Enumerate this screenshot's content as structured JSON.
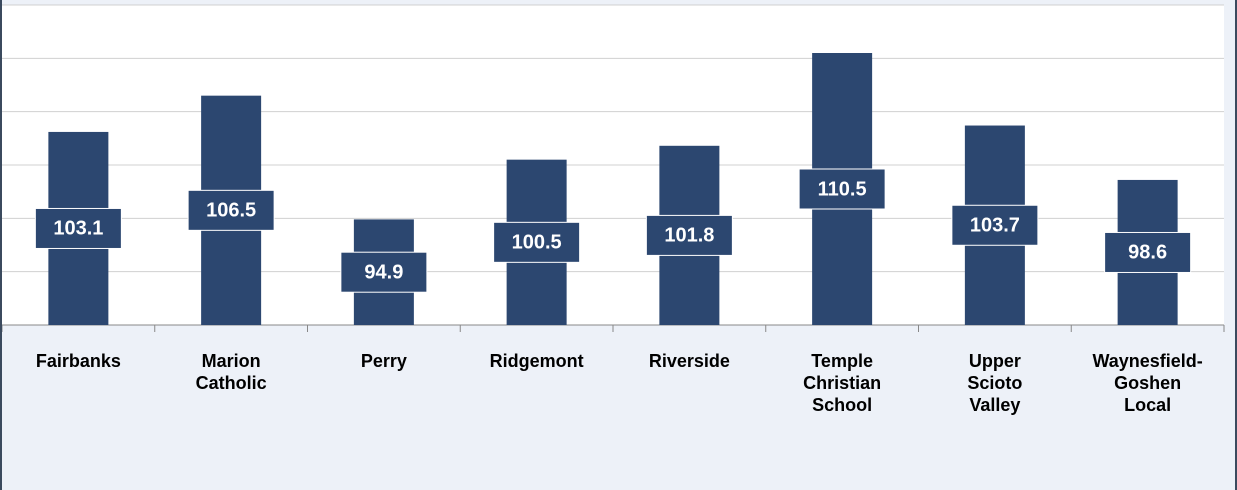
{
  "chart_data": {
    "type": "bar",
    "categories": [
      "Fairbanks",
      "Marion Catholic",
      "Perry",
      "Ridgemont",
      "Riverside",
      "Temple Christian School",
      "Upper Scioto Valley",
      "Waynesfield-Goshen Local"
    ],
    "values": [
      103.1,
      106.5,
      94.9,
      100.5,
      101.8,
      110.5,
      103.7,
      98.6
    ],
    "color": "#2c4770",
    "ylim": [
      85,
      115
    ],
    "yticks": [
      85,
      90,
      95,
      100,
      105,
      110,
      115
    ],
    "grid": true
  }
}
